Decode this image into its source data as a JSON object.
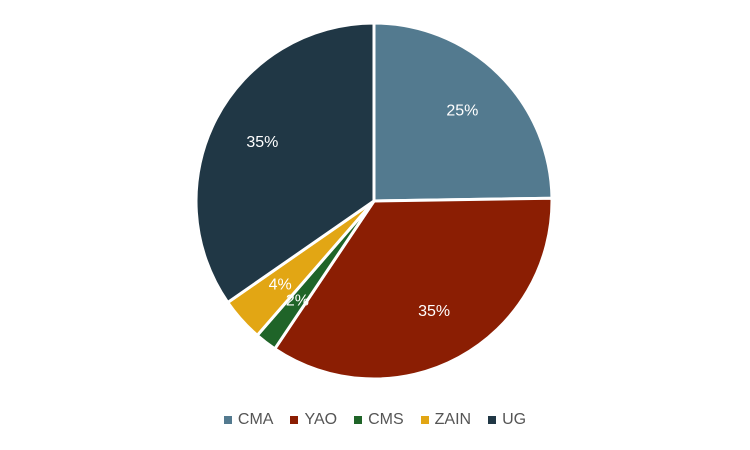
{
  "chart_data": {
    "type": "pie",
    "categories": [
      "CMA",
      "YAO",
      "CMS",
      "ZAIN",
      "UG"
    ],
    "values": [
      25,
      35,
      2,
      4,
      35
    ],
    "labels": [
      "25%",
      "35%",
      "2%",
      "4%",
      "35%"
    ],
    "colors": [
      "#537a8f",
      "#8b1e03",
      "#1f6428",
      "#e2a614",
      "#203745"
    ],
    "start_angle_deg": 0,
    "direction": "clockwise",
    "legend_position": "bottom",
    "title": ""
  }
}
